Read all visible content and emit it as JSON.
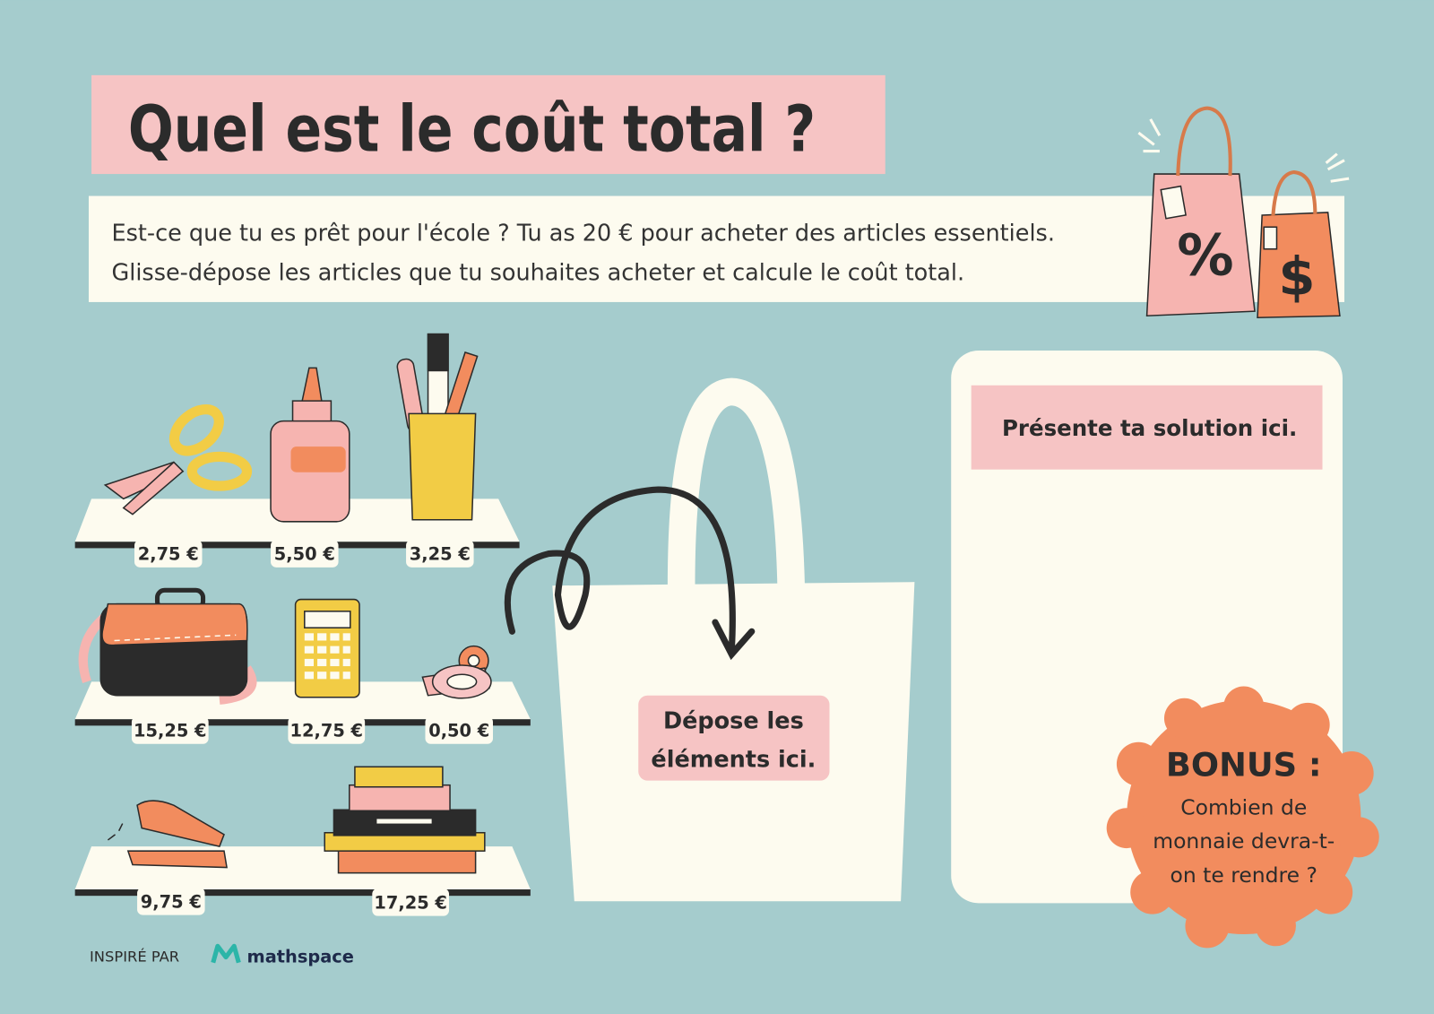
{
  "header": {
    "title": "Quel est le coût total ?",
    "instructions": [
      "Est-ce que tu es prêt pour l'école ? Tu as 20 € pour acheter des articles essentiels.",
      "Glisse-dépose les articles que tu souhaites acheter et calcule le coût total."
    ]
  },
  "badges": {
    "left": "%",
    "right": "$"
  },
  "prices": [
    "2,75 €",
    "5,50 €",
    "3,25 €",
    "15,25 €",
    "12,75 €",
    "0,50 €",
    "9,75 €",
    "17,25 €"
  ],
  "bag": {
    "label": [
      "Dépose les",
      "éléments ici."
    ]
  },
  "solution": {
    "label": "Présente ta solution ici."
  },
  "bonus": {
    "title": "BONUS :",
    "text": [
      "Combien de",
      "monnaie devra-t-",
      "on te rendre ?"
    ]
  },
  "footer": {
    "credit": "INSPIRÉ PAR",
    "brand": "mathspace"
  }
}
